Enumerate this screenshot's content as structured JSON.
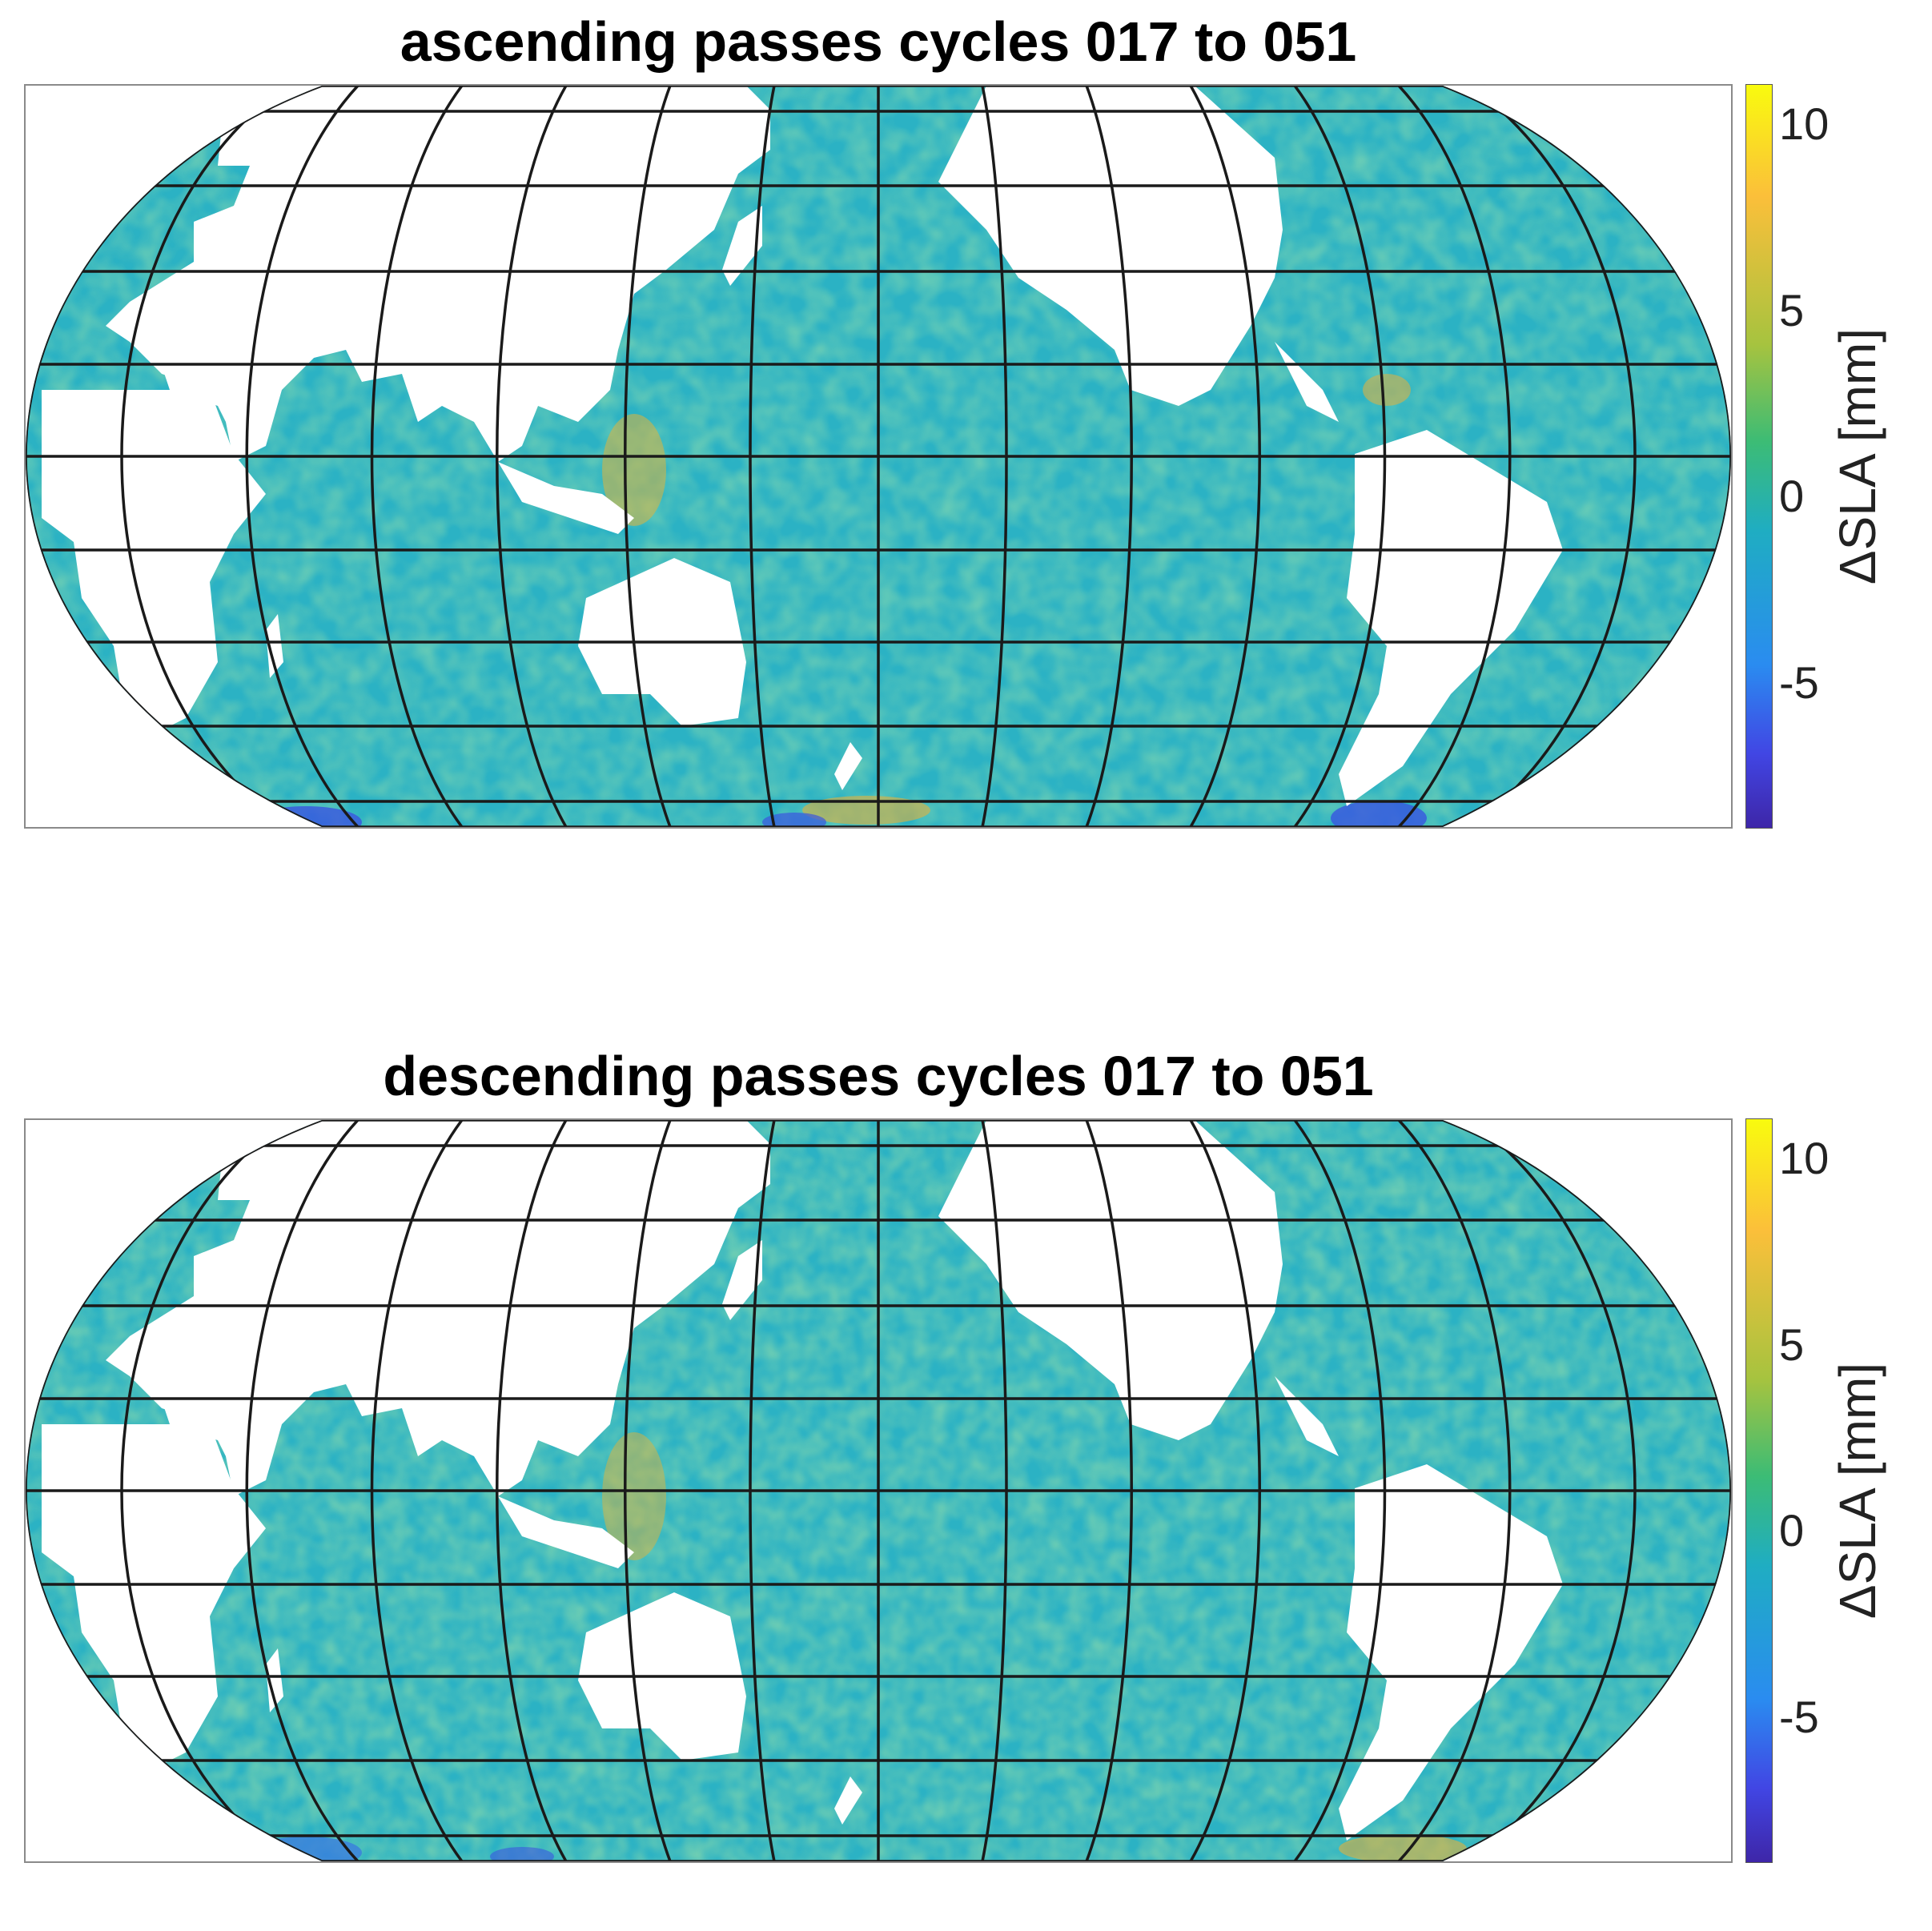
{
  "panels": [
    {
      "title": "ascending passes cycles 017 to 051",
      "colorbar": {
        "label": "ΔSLA [mm]",
        "ticks": [
          "10",
          "5",
          "0",
          "-5"
        ],
        "range": [
          -9,
          11
        ],
        "colormap": "parula"
      }
    },
    {
      "title": "descending passes cycles 017 to 051",
      "colorbar": {
        "label": "ΔSLA [mm]",
        "ticks": [
          "10",
          "5",
          "0",
          "-5"
        ],
        "range": [
          -9,
          11
        ],
        "colormap": "parula"
      }
    }
  ],
  "map": {
    "projection": "pseudocylindrical, Pacific-centred",
    "graticule": "on",
    "land_color": "#ffffff",
    "ocean_base_color": "#2bb2c4",
    "grid_color": "#1a1a1a"
  }
}
